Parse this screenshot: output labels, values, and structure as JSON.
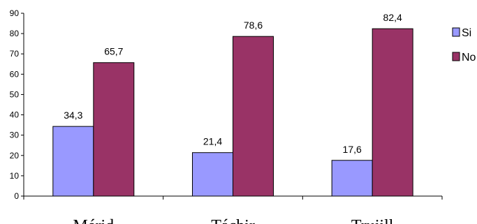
{
  "chart_data": {
    "type": "bar",
    "categories": [
      "Mérid",
      "Táchir",
      "Trujill"
    ],
    "series": [
      {
        "name": "Si",
        "values": [
          34.3,
          21.4,
          17.6
        ],
        "labels": [
          "34,3",
          "21,4",
          "17,6"
        ],
        "color": "#9999ff"
      },
      {
        "name": "No",
        "values": [
          65.7,
          78.6,
          82.4
        ],
        "labels": [
          "65,7",
          "78,6",
          "82,4"
        ],
        "color": "#993366"
      }
    ],
    "yticks": [
      0,
      10,
      20,
      30,
      40,
      50,
      60,
      70,
      80,
      90
    ],
    "ylim": [
      0,
      90
    ],
    "legend_position": "right",
    "grid": false
  }
}
